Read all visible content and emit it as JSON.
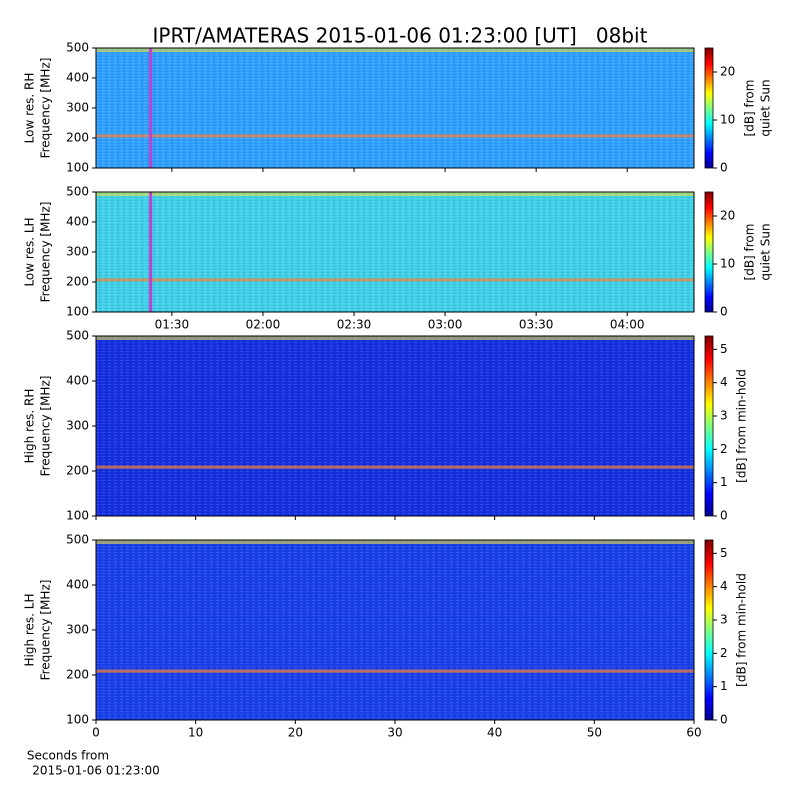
{
  "title": "IPRT/AMATERAS 2015-01-06 01:23:00 [UT]   08bit",
  "xlabel": [
    "Seconds from",
    "2015-01-06 01:23:00"
  ],
  "chart_data": [
    {
      "type": "heatmap",
      "ylabel": [
        "Low res. RH",
        "Frequency [MHz]"
      ],
      "ylim": [
        100,
        500
      ],
      "yticks": [
        100,
        200,
        300,
        400,
        500
      ],
      "xlim": [
        "01:05",
        "04:22"
      ],
      "xticks": [
        "01:30",
        "02:00",
        "02:30",
        "03:00",
        "03:30",
        "04:00"
      ],
      "xtick_labels": false,
      "marker": {
        "x": "01:23",
        "color": "#c040d0"
      },
      "background_color": "#30a0ff",
      "colorbar": {
        "label": [
          "[dB] from",
          "quiet Sun"
        ],
        "lim": [
          0,
          25
        ],
        "ticks": [
          0,
          10,
          20
        ]
      }
    },
    {
      "type": "heatmap",
      "ylabel": [
        "Low res. LH",
        "Frequency [MHz]"
      ],
      "ylim": [
        100,
        500
      ],
      "yticks": [
        100,
        200,
        300,
        400,
        500
      ],
      "xlim": [
        "01:05",
        "04:22"
      ],
      "xticks": [
        "01:30",
        "02:00",
        "02:30",
        "03:00",
        "03:30",
        "04:00"
      ],
      "xtick_labels": true,
      "marker": {
        "x": "01:23",
        "color": "#c040d0"
      },
      "background_color": "#40d0e8",
      "colorbar": {
        "label": [
          "[dB] from",
          "quiet Sun"
        ],
        "lim": [
          0,
          25
        ],
        "ticks": [
          0,
          10,
          20
        ]
      }
    },
    {
      "type": "heatmap",
      "ylabel": [
        "High res. RH",
        "Frequency [MHz]"
      ],
      "ylim": [
        100,
        500
      ],
      "yticks": [
        100,
        200,
        300,
        400,
        500
      ],
      "xlim": [
        0,
        60
      ],
      "xticks": [
        0,
        10,
        20,
        30,
        40,
        50,
        60
      ],
      "xtick_labels": false,
      "background_color": "#1530e0",
      "colorbar": {
        "label": [
          "[dB] from min-hold"
        ],
        "lim": [
          0,
          5.4
        ],
        "ticks": [
          0,
          1,
          2,
          3,
          4,
          5
        ]
      }
    },
    {
      "type": "heatmap",
      "ylabel": [
        "High res. LH",
        "Frequency [MHz]"
      ],
      "ylim": [
        100,
        500
      ],
      "yticks": [
        100,
        200,
        300,
        400,
        500
      ],
      "xlim": [
        0,
        60
      ],
      "xticks": [
        0,
        10,
        20,
        30,
        40,
        50,
        60
      ],
      "xtick_labels": true,
      "background_color": "#1a40e8",
      "colorbar": {
        "label": [
          "[dB] from min-hold"
        ],
        "lim": [
          0,
          5.4
        ],
        "ticks": [
          0,
          1,
          2,
          3,
          4,
          5
        ]
      }
    }
  ]
}
